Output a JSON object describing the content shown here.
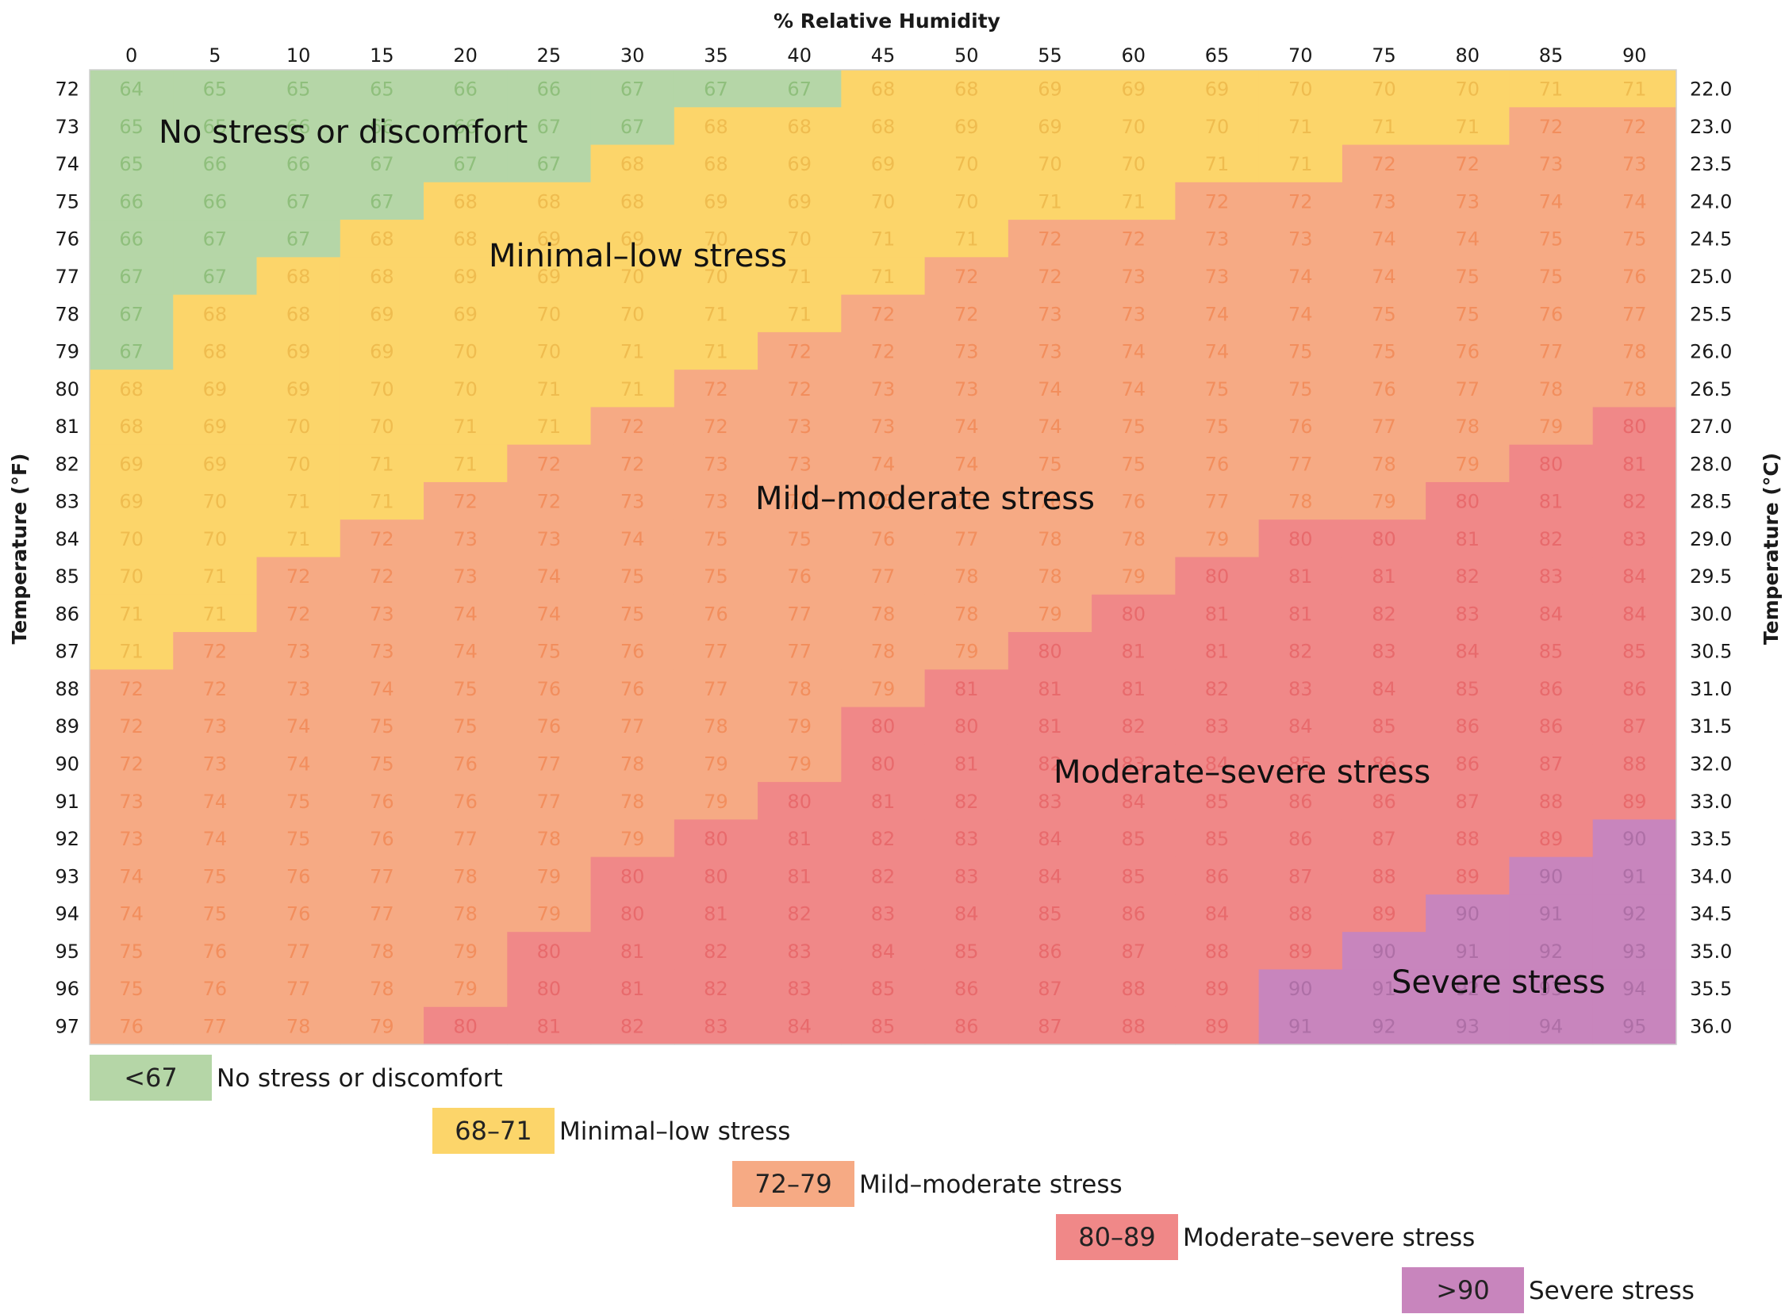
{
  "chart_data": {
    "type": "heatmap",
    "title": "",
    "xlabel": "% Relative Humidity",
    "ylabel_left": "Temperature (°F)",
    "ylabel_right": "Temperature (°C)",
    "humidity": [
      0,
      5,
      10,
      15,
      20,
      25,
      30,
      35,
      40,
      45,
      50,
      55,
      60,
      65,
      70,
      75,
      80,
      85,
      90
    ],
    "temp_f": [
      72,
      73,
      74,
      75,
      76,
      77,
      78,
      79,
      80,
      81,
      82,
      83,
      84,
      85,
      86,
      87,
      88,
      89,
      90,
      91,
      92,
      93,
      94,
      95,
      96,
      97
    ],
    "temp_c": [
      "22.0",
      "23.0",
      "23.5",
      "24.0",
      "24.5",
      "25.0",
      "25.5",
      "26.0",
      "26.5",
      "27.0",
      "28.0",
      "28.5",
      "29.0",
      "29.5",
      "30.0",
      "30.5",
      "31.0",
      "31.5",
      "32.0",
      "33.0",
      "33.5",
      "34.0",
      "34.5",
      "35.0",
      "35.5",
      "36.0"
    ],
    "values": [
      [
        64,
        65,
        65,
        65,
        66,
        66,
        67,
        67,
        67,
        68,
        68,
        69,
        69,
        69,
        70,
        70,
        70,
        71,
        71
      ],
      [
        65,
        65,
        66,
        66,
        66,
        67,
        67,
        68,
        68,
        68,
        69,
        69,
        70,
        70,
        71,
        71,
        71,
        72,
        72
      ],
      [
        65,
        66,
        66,
        67,
        67,
        67,
        68,
        68,
        69,
        69,
        70,
        70,
        70,
        71,
        71,
        72,
        72,
        73,
        73
      ],
      [
        66,
        66,
        67,
        67,
        68,
        68,
        68,
        69,
        69,
        70,
        70,
        71,
        71,
        72,
        72,
        73,
        73,
        74,
        74
      ],
      [
        66,
        67,
        67,
        68,
        68,
        69,
        69,
        70,
        70,
        71,
        71,
        72,
        72,
        73,
        73,
        74,
        74,
        75,
        75
      ],
      [
        67,
        67,
        68,
        68,
        69,
        69,
        70,
        70,
        71,
        71,
        72,
        72,
        73,
        73,
        74,
        74,
        75,
        75,
        76
      ],
      [
        67,
        68,
        68,
        69,
        69,
        70,
        70,
        71,
        71,
        72,
        72,
        73,
        73,
        74,
        74,
        75,
        75,
        76,
        77
      ],
      [
        67,
        68,
        69,
        69,
        70,
        70,
        71,
        71,
        72,
        72,
        73,
        73,
        74,
        74,
        75,
        75,
        76,
        77,
        78
      ],
      [
        68,
        69,
        69,
        70,
        70,
        71,
        71,
        72,
        72,
        73,
        73,
        74,
        74,
        75,
        75,
        76,
        77,
        78,
        78
      ],
      [
        68,
        69,
        70,
        70,
        71,
        71,
        72,
        72,
        73,
        73,
        74,
        74,
        75,
        75,
        76,
        77,
        78,
        79,
        80
      ],
      [
        69,
        69,
        70,
        71,
        71,
        72,
        72,
        73,
        73,
        74,
        74,
        75,
        75,
        76,
        77,
        78,
        79,
        80,
        81
      ],
      [
        69,
        70,
        71,
        71,
        72,
        72,
        73,
        73,
        74,
        75,
        75,
        76,
        76,
        77,
        78,
        79,
        80,
        81,
        82
      ],
      [
        70,
        70,
        71,
        72,
        73,
        73,
        74,
        75,
        75,
        76,
        77,
        78,
        78,
        79,
        80,
        80,
        81,
        82,
        83
      ],
      [
        70,
        71,
        72,
        72,
        73,
        74,
        75,
        75,
        76,
        77,
        78,
        78,
        79,
        80,
        81,
        81,
        82,
        83,
        84
      ],
      [
        71,
        71,
        72,
        73,
        74,
        74,
        75,
        76,
        77,
        78,
        78,
        79,
        80,
        81,
        81,
        82,
        83,
        84,
        84
      ],
      [
        71,
        72,
        73,
        73,
        74,
        75,
        76,
        77,
        77,
        78,
        79,
        80,
        81,
        81,
        82,
        83,
        84,
        85,
        85
      ],
      [
        72,
        72,
        73,
        74,
        75,
        76,
        76,
        77,
        78,
        79,
        81,
        81,
        81,
        82,
        83,
        84,
        85,
        86,
        86
      ],
      [
        72,
        73,
        74,
        75,
        75,
        76,
        77,
        78,
        79,
        80,
        80,
        81,
        82,
        83,
        84,
        85,
        86,
        86,
        87
      ],
      [
        72,
        73,
        74,
        75,
        76,
        77,
        78,
        79,
        79,
        80,
        81,
        82,
        83,
        84,
        85,
        86,
        86,
        87,
        88
      ],
      [
        73,
        74,
        75,
        76,
        76,
        77,
        78,
        79,
        80,
        81,
        82,
        83,
        84,
        85,
        86,
        86,
        87,
        88,
        89
      ],
      [
        73,
        74,
        75,
        76,
        77,
        78,
        79,
        80,
        81,
        82,
        83,
        84,
        85,
        85,
        86,
        87,
        88,
        89,
        90
      ],
      [
        74,
        75,
        76,
        77,
        78,
        79,
        80,
        80,
        81,
        82,
        83,
        84,
        85,
        86,
        87,
        88,
        89,
        90,
        91
      ],
      [
        74,
        75,
        76,
        77,
        78,
        79,
        80,
        81,
        82,
        83,
        84,
        85,
        86,
        84,
        88,
        89,
        90,
        91,
        92
      ],
      [
        75,
        76,
        77,
        78,
        79,
        80,
        81,
        82,
        83,
        84,
        85,
        86,
        87,
        88,
        89,
        90,
        91,
        92,
        93
      ],
      [
        75,
        76,
        77,
        78,
        79,
        80,
        81,
        82,
        83,
        85,
        86,
        87,
        88,
        89,
        90,
        91,
        92,
        93,
        94
      ],
      [
        76,
        77,
        78,
        79,
        80,
        81,
        82,
        83,
        84,
        85,
        86,
        87,
        88,
        89,
        91,
        92,
        93,
        94,
        95
      ]
    ],
    "stress_categories": [
      [
        0,
        0,
        0,
        0,
        0,
        0,
        0,
        0,
        0,
        1,
        1,
        1,
        1,
        1,
        1,
        1,
        1,
        1,
        1
      ],
      [
        0,
        0,
        0,
        0,
        0,
        0,
        0,
        1,
        1,
        1,
        1,
        1,
        1,
        1,
        1,
        1,
        1,
        2,
        2
      ],
      [
        0,
        0,
        0,
        0,
        0,
        0,
        1,
        1,
        1,
        1,
        1,
        1,
        1,
        1,
        1,
        2,
        2,
        2,
        2
      ],
      [
        0,
        0,
        0,
        0,
        1,
        1,
        1,
        1,
        1,
        1,
        1,
        1,
        1,
        2,
        2,
        2,
        2,
        2,
        2
      ],
      [
        0,
        0,
        0,
        1,
        1,
        1,
        1,
        1,
        1,
        1,
        1,
        2,
        2,
        2,
        2,
        2,
        2,
        2,
        2
      ],
      [
        0,
        0,
        1,
        1,
        1,
        1,
        1,
        1,
        1,
        1,
        2,
        2,
        2,
        2,
        2,
        2,
        2,
        2,
        2
      ],
      [
        0,
        1,
        1,
        1,
        1,
        1,
        1,
        1,
        1,
        2,
        2,
        2,
        2,
        2,
        2,
        2,
        2,
        2,
        2
      ],
      [
        0,
        1,
        1,
        1,
        1,
        1,
        1,
        1,
        2,
        2,
        2,
        2,
        2,
        2,
        2,
        2,
        2,
        2,
        2
      ],
      [
        1,
        1,
        1,
        1,
        1,
        1,
        1,
        2,
        2,
        2,
        2,
        2,
        2,
        2,
        2,
        2,
        2,
        2,
        2
      ],
      [
        1,
        1,
        1,
        1,
        1,
        1,
        2,
        2,
        2,
        2,
        2,
        2,
        2,
        2,
        2,
        2,
        2,
        2,
        3
      ],
      [
        1,
        1,
        1,
        1,
        1,
        2,
        2,
        2,
        2,
        2,
        2,
        2,
        2,
        2,
        2,
        2,
        2,
        3,
        3
      ],
      [
        1,
        1,
        1,
        1,
        2,
        2,
        2,
        2,
        2,
        2,
        2,
        2,
        2,
        2,
        2,
        2,
        3,
        3,
        3
      ],
      [
        1,
        1,
        1,
        2,
        2,
        2,
        2,
        2,
        2,
        2,
        2,
        2,
        2,
        2,
        3,
        3,
        3,
        3,
        3
      ],
      [
        1,
        1,
        2,
        2,
        2,
        2,
        2,
        2,
        2,
        2,
        2,
        2,
        2,
        3,
        3,
        3,
        3,
        3,
        3
      ],
      [
        1,
        1,
        2,
        2,
        2,
        2,
        2,
        2,
        2,
        2,
        2,
        2,
        3,
        3,
        3,
        3,
        3,
        3,
        3
      ],
      [
        1,
        2,
        2,
        2,
        2,
        2,
        2,
        2,
        2,
        2,
        2,
        3,
        3,
        3,
        3,
        3,
        3,
        3,
        3
      ],
      [
        2,
        2,
        2,
        2,
        2,
        2,
        2,
        2,
        2,
        2,
        3,
        3,
        3,
        3,
        3,
        3,
        3,
        3,
        3
      ],
      [
        2,
        2,
        2,
        2,
        2,
        2,
        2,
        2,
        2,
        3,
        3,
        3,
        3,
        3,
        3,
        3,
        3,
        3,
        3
      ],
      [
        2,
        2,
        2,
        2,
        2,
        2,
        2,
        2,
        2,
        3,
        3,
        3,
        3,
        3,
        3,
        3,
        3,
        3,
        3
      ],
      [
        2,
        2,
        2,
        2,
        2,
        2,
        2,
        2,
        3,
        3,
        3,
        3,
        3,
        3,
        3,
        3,
        3,
        3,
        3
      ],
      [
        2,
        2,
        2,
        2,
        2,
        2,
        2,
        3,
        3,
        3,
        3,
        3,
        3,
        3,
        3,
        3,
        3,
        3,
        4
      ],
      [
        2,
        2,
        2,
        2,
        2,
        2,
        3,
        3,
        3,
        3,
        3,
        3,
        3,
        3,
        3,
        3,
        3,
        4,
        4
      ],
      [
        2,
        2,
        2,
        2,
        2,
        2,
        3,
        3,
        3,
        3,
        3,
        3,
        3,
        3,
        3,
        3,
        4,
        4,
        4
      ],
      [
        2,
        2,
        2,
        2,
        2,
        3,
        3,
        3,
        3,
        3,
        3,
        3,
        3,
        3,
        3,
        4,
        4,
        4,
        4
      ],
      [
        2,
        2,
        2,
        2,
        2,
        3,
        3,
        3,
        3,
        3,
        3,
        3,
        3,
        3,
        4,
        4,
        4,
        4,
        4
      ],
      [
        2,
        2,
        2,
        2,
        3,
        3,
        3,
        3,
        3,
        3,
        3,
        3,
        3,
        3,
        4,
        4,
        4,
        4,
        4
      ]
    ],
    "categories": [
      {
        "range": "<67",
        "label": "No stress or discomfort",
        "color": "#b5d6a7",
        "text_color": "#8fbf7c"
      },
      {
        "range": "68–71",
        "label": "Minimal–low stress",
        "color": "#fcd56a",
        "text_color": "#efbc4f"
      },
      {
        "range": "72–79",
        "label": "Mild–moderate stress",
        "color": "#f6aa84",
        "text_color": "#f28e5d"
      },
      {
        "range": "80–89",
        "label": "Moderate–severe stress",
        "color": "#f08888",
        "text_color": "#e86a6c"
      },
      {
        "range": ">90",
        "label": "Severe stress",
        "color": "#c885bd",
        "text_color": "#ae6fa6"
      }
    ],
    "region_labels": [
      "No stress or discomfort",
      "Minimal–low stress",
      "Mild–moderate stress",
      "Moderate–severe stress",
      "Severe stress"
    ]
  }
}
